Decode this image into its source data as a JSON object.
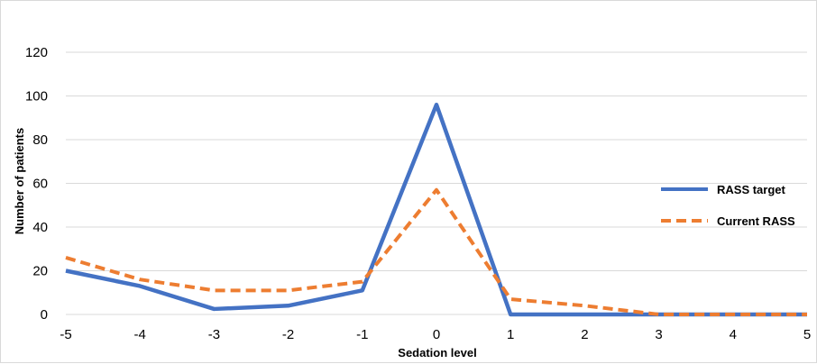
{
  "chart_data": {
    "type": "line",
    "title": "",
    "xlabel": "Sedation level",
    "ylabel": "Number of patients",
    "x": [
      -5,
      -4,
      -3,
      -2,
      -1,
      0,
      1,
      2,
      3,
      4,
      5
    ],
    "xlim": [
      -5,
      5
    ],
    "ylim": [
      0,
      120
    ],
    "yticks": [
      0,
      20,
      40,
      60,
      80,
      100,
      120
    ],
    "grid": true,
    "legend_position": "right",
    "series": [
      {
        "name": "RASS target",
        "color": "#4472C4",
        "dash": "solid",
        "values": [
          20,
          13,
          2.5,
          4,
          11,
          96,
          0,
          0,
          0,
          0,
          0
        ]
      },
      {
        "name": "Current RASS",
        "color": "#ED7D31",
        "dash": "dashed",
        "values": [
          26,
          16,
          11,
          11,
          15,
          57,
          7,
          4,
          0,
          0,
          0
        ]
      }
    ]
  }
}
